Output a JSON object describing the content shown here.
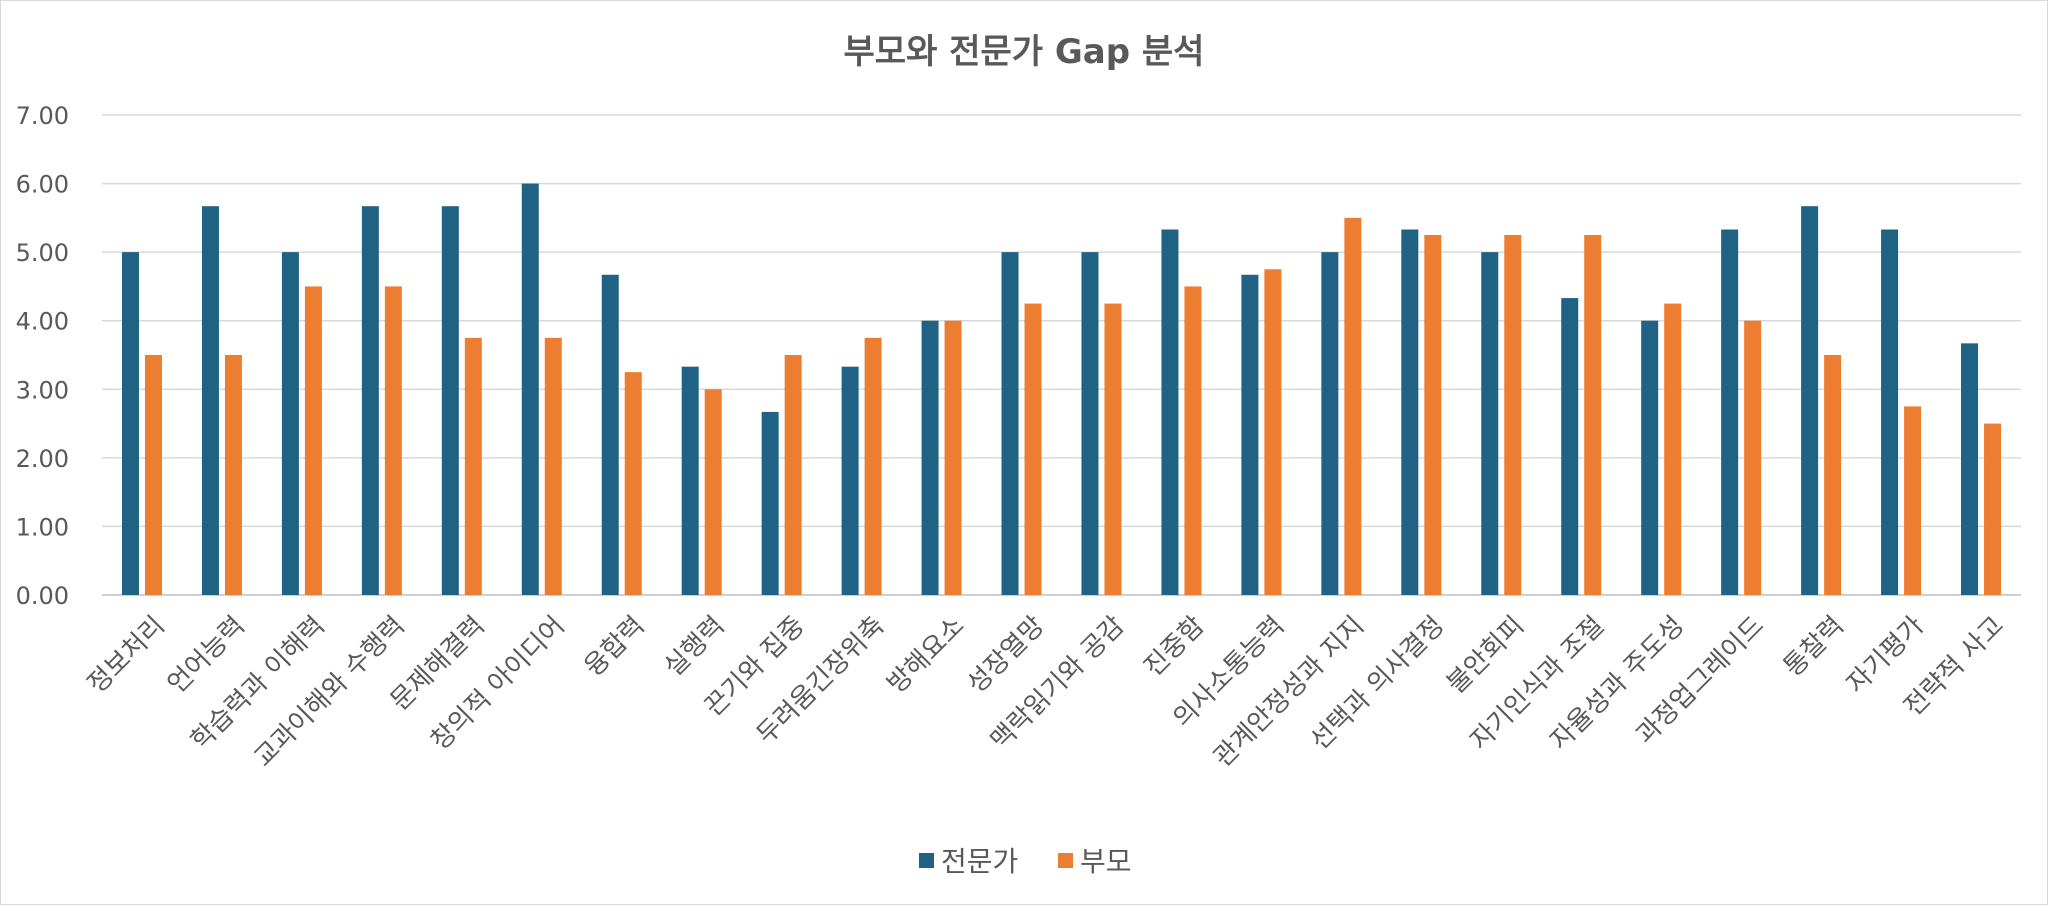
{
  "chart_data": {
    "type": "bar",
    "title": "부모와 전문가 Gap 분석",
    "xlabel": "",
    "ylabel": "",
    "ylim": [
      0,
      7
    ],
    "yticks": [
      "0.00",
      "1.00",
      "2.00",
      "3.00",
      "4.00",
      "5.00",
      "6.00",
      "7.00"
    ],
    "grid": true,
    "legend_position": "bottom",
    "categories": [
      "정보처리",
      "언어능력",
      "학습력과 이해력",
      "교과이해와 수행력",
      "문제해결력",
      "창의적 아이디어",
      "융합력",
      "실행력",
      "끈기와 집중",
      "두려움긴장위축",
      "방해요소",
      "성장열망",
      "맥락읽기와 공감",
      "진중함",
      "의사소통능력",
      "관계안정성과 지지",
      "선택과 의사결정",
      "불안회피",
      "자기인식과 조절",
      "자율성과 주도성",
      "과정업그레이드",
      "통찰력",
      "자기평가",
      "전략적 사고"
    ],
    "series": [
      {
        "name": "전문가",
        "color": "#1f6283",
        "values": [
          5.0,
          5.67,
          5.0,
          5.67,
          5.67,
          6.0,
          4.67,
          3.33,
          2.67,
          3.33,
          4.0,
          5.0,
          5.0,
          5.33,
          4.67,
          5.0,
          5.33,
          5.0,
          4.33,
          4.0,
          5.33,
          5.67,
          5.33,
          3.67
        ]
      },
      {
        "name": "부모",
        "color": "#ed7d31",
        "values": [
          3.5,
          3.5,
          4.5,
          4.5,
          3.75,
          3.75,
          3.25,
          3.0,
          3.5,
          3.75,
          4.0,
          4.25,
          4.25,
          4.5,
          4.75,
          5.5,
          5.25,
          5.25,
          5.25,
          4.25,
          4.0,
          3.5,
          2.75,
          2.5
        ]
      }
    ]
  }
}
